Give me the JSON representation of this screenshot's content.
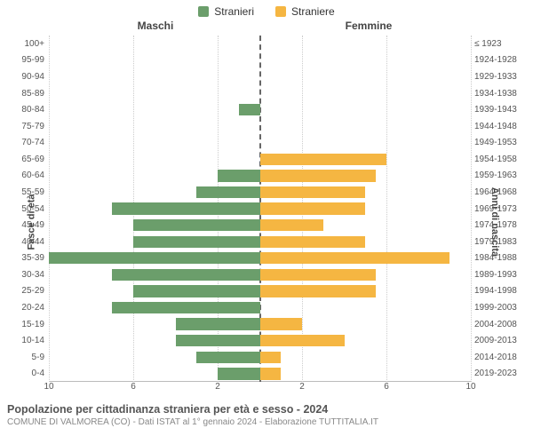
{
  "chart": {
    "type": "population-pyramid",
    "legend": {
      "male": {
        "label": "Stranieri",
        "color": "#6b9e6b"
      },
      "female": {
        "label": "Straniere",
        "color": "#f5b642"
      }
    },
    "column_headers": {
      "left": "Maschi",
      "right": "Femmine"
    },
    "y_label_left": "Fasce di età",
    "y_label_right": "Anni di nascita",
    "x_max": 10,
    "x_ticks": [
      10,
      6,
      2,
      2,
      6,
      10
    ],
    "grid_color": "#cccccc",
    "center_line_color": "#666666",
    "background_color": "#ffffff",
    "tick_fontsize": 10,
    "label_fontsize": 11,
    "rows": [
      {
        "age": "100+",
        "years": "≤ 1923",
        "m": 0,
        "f": 0
      },
      {
        "age": "95-99",
        "years": "1924-1928",
        "m": 0,
        "f": 0
      },
      {
        "age": "90-94",
        "years": "1929-1933",
        "m": 0,
        "f": 0
      },
      {
        "age": "85-89",
        "years": "1934-1938",
        "m": 0,
        "f": 0
      },
      {
        "age": "80-84",
        "years": "1939-1943",
        "m": 1,
        "f": 0
      },
      {
        "age": "75-79",
        "years": "1944-1948",
        "m": 0,
        "f": 0
      },
      {
        "age": "70-74",
        "years": "1949-1953",
        "m": 0,
        "f": 0
      },
      {
        "age": "65-69",
        "years": "1954-1958",
        "m": 0,
        "f": 6
      },
      {
        "age": "60-64",
        "years": "1959-1963",
        "m": 2,
        "f": 5.5
      },
      {
        "age": "55-59",
        "years": "1964-1968",
        "m": 3,
        "f": 5
      },
      {
        "age": "50-54",
        "years": "1969-1973",
        "m": 7,
        "f": 5
      },
      {
        "age": "45-49",
        "years": "1974-1978",
        "m": 6,
        "f": 3
      },
      {
        "age": "40-44",
        "years": "1979-1983",
        "m": 6,
        "f": 5
      },
      {
        "age": "35-39",
        "years": "1984-1988",
        "m": 10,
        "f": 9
      },
      {
        "age": "30-34",
        "years": "1989-1993",
        "m": 7,
        "f": 5.5
      },
      {
        "age": "25-29",
        "years": "1994-1998",
        "m": 6,
        "f": 5.5
      },
      {
        "age": "20-24",
        "years": "1999-2003",
        "m": 7,
        "f": 0
      },
      {
        "age": "15-19",
        "years": "2004-2008",
        "m": 4,
        "f": 2
      },
      {
        "age": "10-14",
        "years": "2009-2013",
        "m": 4,
        "f": 4
      },
      {
        "age": "5-9",
        "years": "2014-2018",
        "m": 3,
        "f": 1
      },
      {
        "age": "0-4",
        "years": "2019-2023",
        "m": 2,
        "f": 1
      }
    ]
  },
  "footer": {
    "title": "Popolazione per cittadinanza straniera per età e sesso - 2024",
    "subtitle": "COMUNE DI VALMOREA (CO) - Dati ISTAT al 1° gennaio 2024 - Elaborazione TUTTITALIA.IT"
  }
}
